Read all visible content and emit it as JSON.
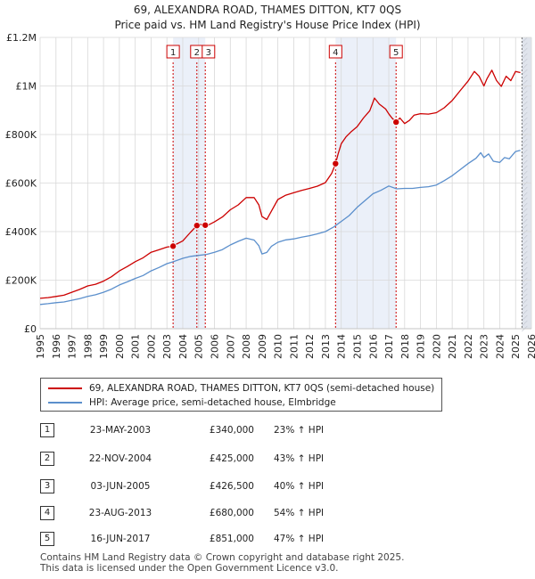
{
  "chart_data": {
    "type": "line",
    "title": "69, ALEXANDRA ROAD, THAMES DITTON, KT7 0QS",
    "subtitle": "Price paid vs. HM Land Registry's House Price Index (HPI)",
    "xlabel": "",
    "ylabel": "",
    "xlim": [
      1995,
      2026
    ],
    "ylim": [
      0,
      1200000
    ],
    "x_ticks": [
      "1995",
      "1996",
      "1997",
      "1998",
      "1999",
      "2000",
      "2001",
      "2002",
      "2003",
      "2004",
      "2005",
      "2006",
      "2007",
      "2008",
      "2009",
      "2010",
      "2011",
      "2012",
      "2013",
      "2014",
      "2015",
      "2016",
      "2017",
      "2018",
      "2019",
      "2020",
      "2021",
      "2022",
      "2023",
      "2024",
      "2025",
      "2026"
    ],
    "y_ticks": [
      {
        "value": 0,
        "label": "£0"
      },
      {
        "value": 200000,
        "label": "£200K"
      },
      {
        "value": 400000,
        "label": "£400K"
      },
      {
        "value": 600000,
        "label": "£600K"
      },
      {
        "value": 800000,
        "label": "£800K"
      },
      {
        "value": 1000000,
        "label": "£1M"
      },
      {
        "value": 1200000,
        "label": "£1.2M"
      }
    ],
    "grid": true,
    "series": [
      {
        "name": "69, ALEXANDRA ROAD, THAMES DITTON, KT7 0QS (semi-detached house)",
        "color": "#cc0000",
        "x": [
          1995.0,
          1995.5,
          1996.0,
          1996.5,
          1997.0,
          1997.5,
          1998.0,
          1998.5,
          1999.0,
          1999.5,
          2000.0,
          2000.5,
          2001.0,
          2001.5,
          2002.0,
          2002.5,
          2003.0,
          2003.39,
          2003.5,
          2004.0,
          2004.5,
          2004.89,
          2005.0,
          2005.42,
          2005.5,
          2006.0,
          2006.5,
          2007.0,
          2007.5,
          2008.0,
          2008.5,
          2008.8,
          2009.0,
          2009.3,
          2009.6,
          2010.0,
          2010.5,
          2011.0,
          2011.5,
          2012.0,
          2012.5,
          2013.0,
          2013.4,
          2013.64,
          2013.8,
          2014.0,
          2014.3,
          2014.6,
          2015.0,
          2015.4,
          2015.8,
          2016.1,
          2016.4,
          2016.8,
          2017.0,
          2017.2,
          2017.46,
          2017.7,
          2018.0,
          2018.3,
          2018.6,
          2019.0,
          2019.5,
          2020.0,
          2020.5,
          2021.0,
          2021.5,
          2022.0,
          2022.4,
          2022.7,
          2023.0,
          2023.2,
          2023.5,
          2023.8,
          2024.1,
          2024.4,
          2024.7,
          2025.0,
          2025.3
        ],
        "values": [
          125000,
          128000,
          133000,
          138000,
          150000,
          162000,
          176000,
          183000,
          196000,
          214000,
          238000,
          256000,
          276000,
          292000,
          315000,
          325000,
          336000,
          340000,
          345000,
          362000,
          398000,
          425000,
          430000,
          426500,
          423000,
          440000,
          460000,
          490000,
          510000,
          540000,
          540000,
          510000,
          462000,
          450000,
          485000,
          532000,
          550000,
          560000,
          570000,
          578000,
          587000,
          602000,
          640000,
          680000,
          720000,
          762000,
          790000,
          810000,
          832000,
          868000,
          898000,
          950000,
          925000,
          905000,
          885000,
          868000,
          851000,
          868000,
          845000,
          858000,
          880000,
          886000,
          884000,
          890000,
          910000,
          940000,
          980000,
          1020000,
          1060000,
          1040000,
          1000000,
          1030000,
          1065000,
          1022000,
          998000,
          1040000,
          1022000,
          1060000,
          1055000
        ]
      },
      {
        "name": "HPI: Average price, semi-detached house, Elmbridge",
        "color": "#5b8fcc",
        "x": [
          1995.0,
          1995.5,
          1996.0,
          1996.5,
          1997.0,
          1997.5,
          1998.0,
          1998.5,
          1999.0,
          1999.5,
          2000.0,
          2000.5,
          2001.0,
          2001.5,
          2002.0,
          2002.5,
          2003.0,
          2003.5,
          2004.0,
          2004.5,
          2005.0,
          2005.5,
          2006.0,
          2006.5,
          2007.0,
          2007.5,
          2008.0,
          2008.5,
          2008.8,
          2009.0,
          2009.3,
          2009.6,
          2010.0,
          2010.5,
          2011.0,
          2011.5,
          2012.0,
          2012.5,
          2013.0,
          2013.5,
          2014.0,
          2014.5,
          2015.0,
          2015.5,
          2016.0,
          2016.5,
          2017.0,
          2017.5,
          2018.0,
          2018.5,
          2019.0,
          2019.5,
          2020.0,
          2020.5,
          2021.0,
          2021.5,
          2022.0,
          2022.5,
          2022.8,
          2023.0,
          2023.3,
          2023.6,
          2024.0,
          2024.3,
          2024.6,
          2025.0,
          2025.3
        ],
        "values": [
          100000,
          103000,
          107000,
          110000,
          117000,
          124000,
          133000,
          140000,
          150000,
          163000,
          180000,
          193000,
          207000,
          219000,
          238000,
          252000,
          268000,
          278000,
          290000,
          298000,
          302000,
          306000,
          315000,
          326000,
          345000,
          360000,
          373000,
          365000,
          342000,
          308000,
          314000,
          340000,
          356000,
          366000,
          370000,
          377000,
          383000,
          391000,
          400000,
          418000,
          442000,
          466000,
          500000,
          528000,
          556000,
          570000,
          588000,
          576000,
          578000,
          578000,
          582000,
          585000,
          592000,
          610000,
          630000,
          655000,
          680000,
          702000,
          725000,
          705000,
          720000,
          690000,
          685000,
          705000,
          700000,
          730000,
          735000
        ]
      }
    ],
    "transactions": [
      {
        "num": "1",
        "date": "23-MAY-2003",
        "price": "£340,000",
        "hpi": "23% ↑ HPI",
        "x": 2003.39,
        "value": 340000
      },
      {
        "num": "2",
        "date": "22-NOV-2004",
        "price": "£425,000",
        "hpi": "43% ↑ HPI",
        "x": 2004.89,
        "value": 425000
      },
      {
        "num": "3",
        "date": "03-JUN-2005",
        "price": "£426,500",
        "hpi": "40% ↑ HPI",
        "x": 2005.42,
        "value": 426500
      },
      {
        "num": "4",
        "date": "23-AUG-2013",
        "price": "£680,000",
        "hpi": "54% ↑ HPI",
        "x": 2013.64,
        "value": 680000
      },
      {
        "num": "5",
        "date": "16-JUN-2017",
        "price": "£851,000",
        "hpi": "47% ↑ HPI",
        "x": 2017.46,
        "value": 851000
      }
    ],
    "shaded_ranges": [
      [
        2003.39,
        2005.42
      ],
      [
        2013.64,
        2017.46
      ],
      [
        2025.4,
        2026
      ]
    ]
  },
  "footer": {
    "line1": "Contains HM Land Registry data © Crown copyright and database right 2025.",
    "line2": "This data is licensed under the Open Government Licence v3.0."
  }
}
